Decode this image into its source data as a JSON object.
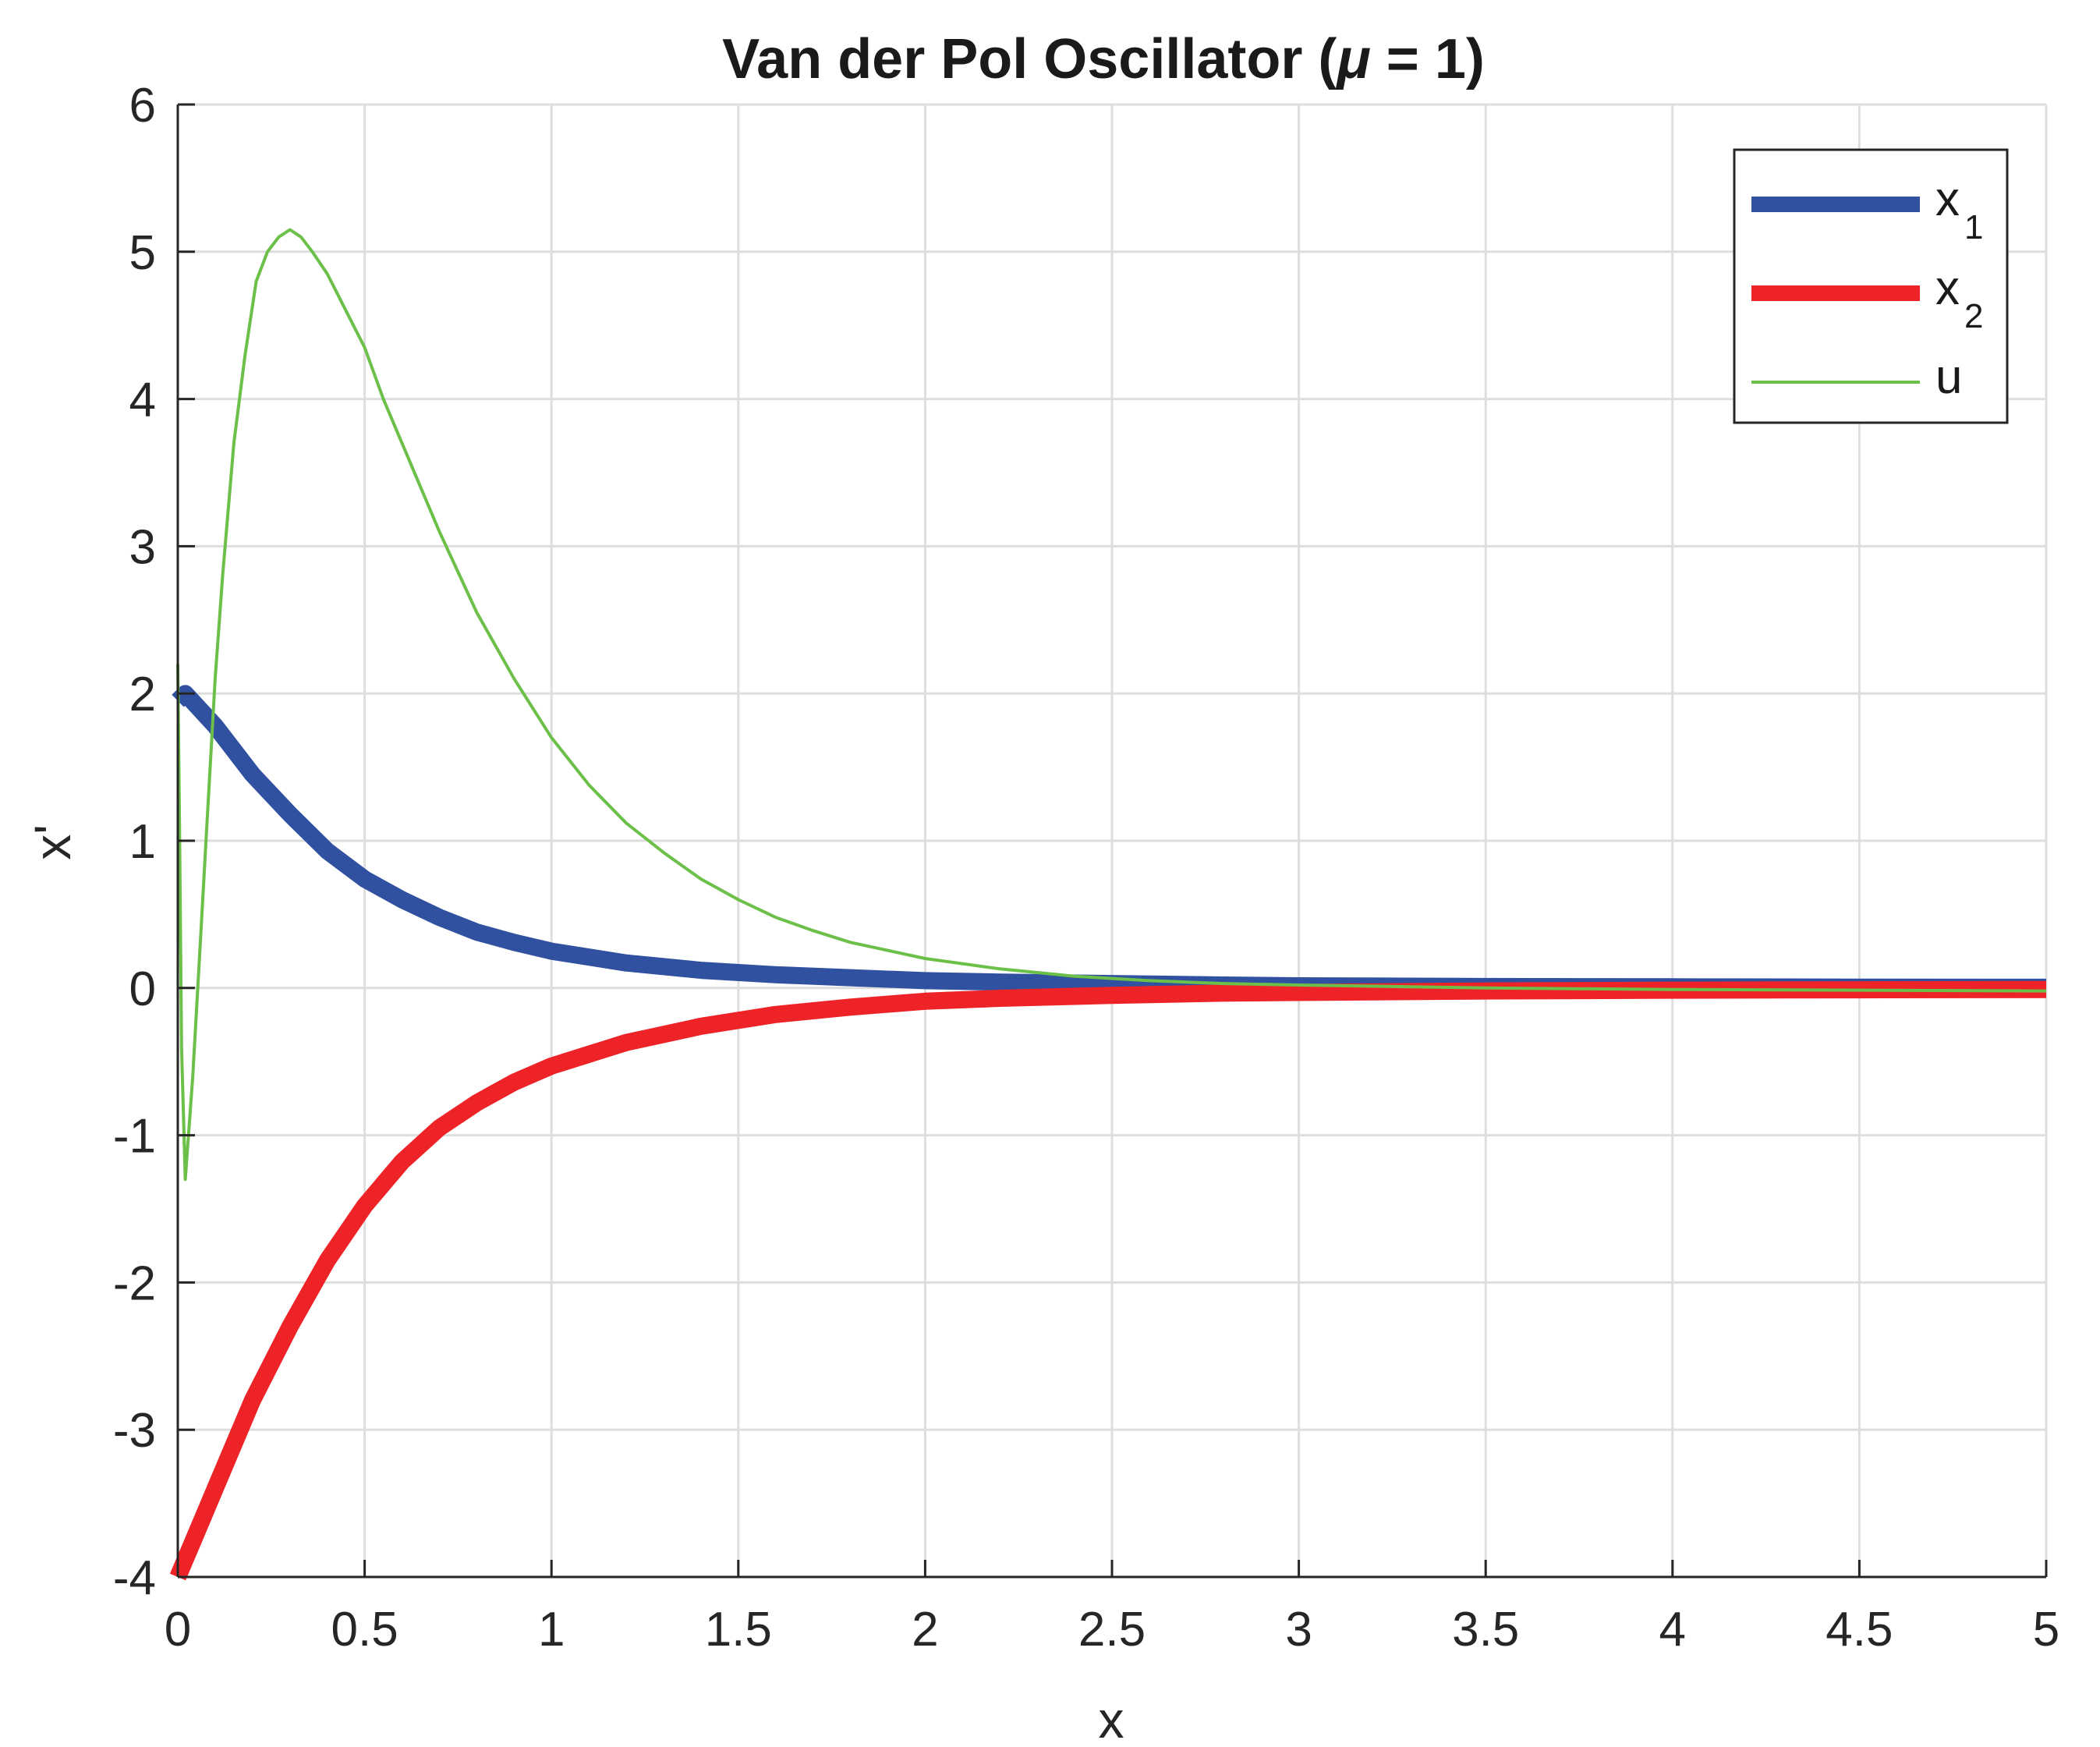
{
  "chart_data": {
    "type": "line",
    "title_main": "Van der Pol Oscillator (",
    "title_symbol": "μ",
    "title_end": " = 1)",
    "xlabel": "x",
    "ylabel": "x'",
    "xlim": [
      0,
      5
    ],
    "ylim": [
      -4,
      6
    ],
    "xticks": [
      0,
      0.5,
      1,
      1.5,
      2,
      2.5,
      3,
      3.5,
      4,
      4.5,
      5
    ],
    "yticks": [
      -4,
      -3,
      -2,
      -1,
      0,
      1,
      2,
      3,
      4,
      5,
      6
    ],
    "xtick_labels": [
      "0",
      "0.5",
      "1",
      "1.5",
      "2",
      "2.5",
      "3",
      "3.5",
      "4",
      "4.5",
      "5"
    ],
    "ytick_labels": [
      "-4",
      "-3",
      "-2",
      "-1",
      "0",
      "1",
      "2",
      "3",
      "4",
      "5",
      "6"
    ],
    "grid": true,
    "legend_position": "top-right",
    "series": [
      {
        "name": "x",
        "name_sub": "1",
        "color": "#3050a0",
        "style": "thick",
        "x": [
          0,
          0.02,
          0.1,
          0.2,
          0.3,
          0.4,
          0.5,
          0.6,
          0.7,
          0.8,
          0.9,
          1.0,
          1.2,
          1.4,
          1.6,
          1.8,
          2.0,
          2.2,
          2.5,
          2.8,
          3.0,
          3.5,
          4.0,
          4.5,
          5.0
        ],
        "y": [
          1.95,
          2.0,
          1.78,
          1.45,
          1.18,
          0.93,
          0.74,
          0.6,
          0.48,
          0.38,
          0.31,
          0.25,
          0.17,
          0.12,
          0.09,
          0.07,
          0.05,
          0.04,
          0.03,
          0.02,
          0.015,
          0.01,
          0.008,
          0.006,
          0.005
        ]
      },
      {
        "name": "x",
        "name_sub": "2",
        "color": "#ee2328",
        "style": "thick",
        "x": [
          0,
          0.05,
          0.1,
          0.2,
          0.3,
          0.4,
          0.5,
          0.6,
          0.7,
          0.8,
          0.9,
          1.0,
          1.2,
          1.4,
          1.6,
          1.8,
          2.0,
          2.2,
          2.5,
          2.8,
          3.0,
          3.5,
          4.0,
          4.5,
          5.0
        ],
        "y": [
          -4.0,
          -3.7,
          -3.4,
          -2.8,
          -2.3,
          -1.85,
          -1.48,
          -1.18,
          -0.95,
          -0.78,
          -0.64,
          -0.53,
          -0.37,
          -0.26,
          -0.18,
          -0.13,
          -0.09,
          -0.07,
          -0.05,
          -0.035,
          -0.03,
          -0.02,
          -0.015,
          -0.012,
          -0.01
        ]
      },
      {
        "name": "u",
        "name_sub": "",
        "color": "#6cc04a",
        "style": "thin",
        "x": [
          0,
          0.005,
          0.01,
          0.02,
          0.04,
          0.06,
          0.08,
          0.1,
          0.12,
          0.15,
          0.18,
          0.21,
          0.24,
          0.27,
          0.3,
          0.33,
          0.36,
          0.4,
          0.45,
          0.5,
          0.55,
          0.6,
          0.7,
          0.8,
          0.9,
          1.0,
          1.1,
          1.2,
          1.3,
          1.4,
          1.5,
          1.6,
          1.7,
          1.8,
          2.0,
          2.2,
          2.4,
          2.6,
          2.8,
          3.0,
          3.5,
          4.0,
          4.5,
          5.0
        ],
        "y": [
          2.2,
          1.0,
          -0.4,
          -1.3,
          -0.6,
          0.3,
          1.2,
          2.1,
          2.8,
          3.7,
          4.3,
          4.8,
          5.0,
          5.1,
          5.15,
          5.1,
          5.0,
          4.85,
          4.6,
          4.35,
          4.0,
          3.7,
          3.1,
          2.55,
          2.1,
          1.7,
          1.38,
          1.12,
          0.92,
          0.74,
          0.6,
          0.48,
          0.39,
          0.31,
          0.2,
          0.13,
          0.08,
          0.05,
          0.03,
          0.02,
          0.0,
          -0.01,
          -0.015,
          -0.02
        ]
      }
    ]
  }
}
